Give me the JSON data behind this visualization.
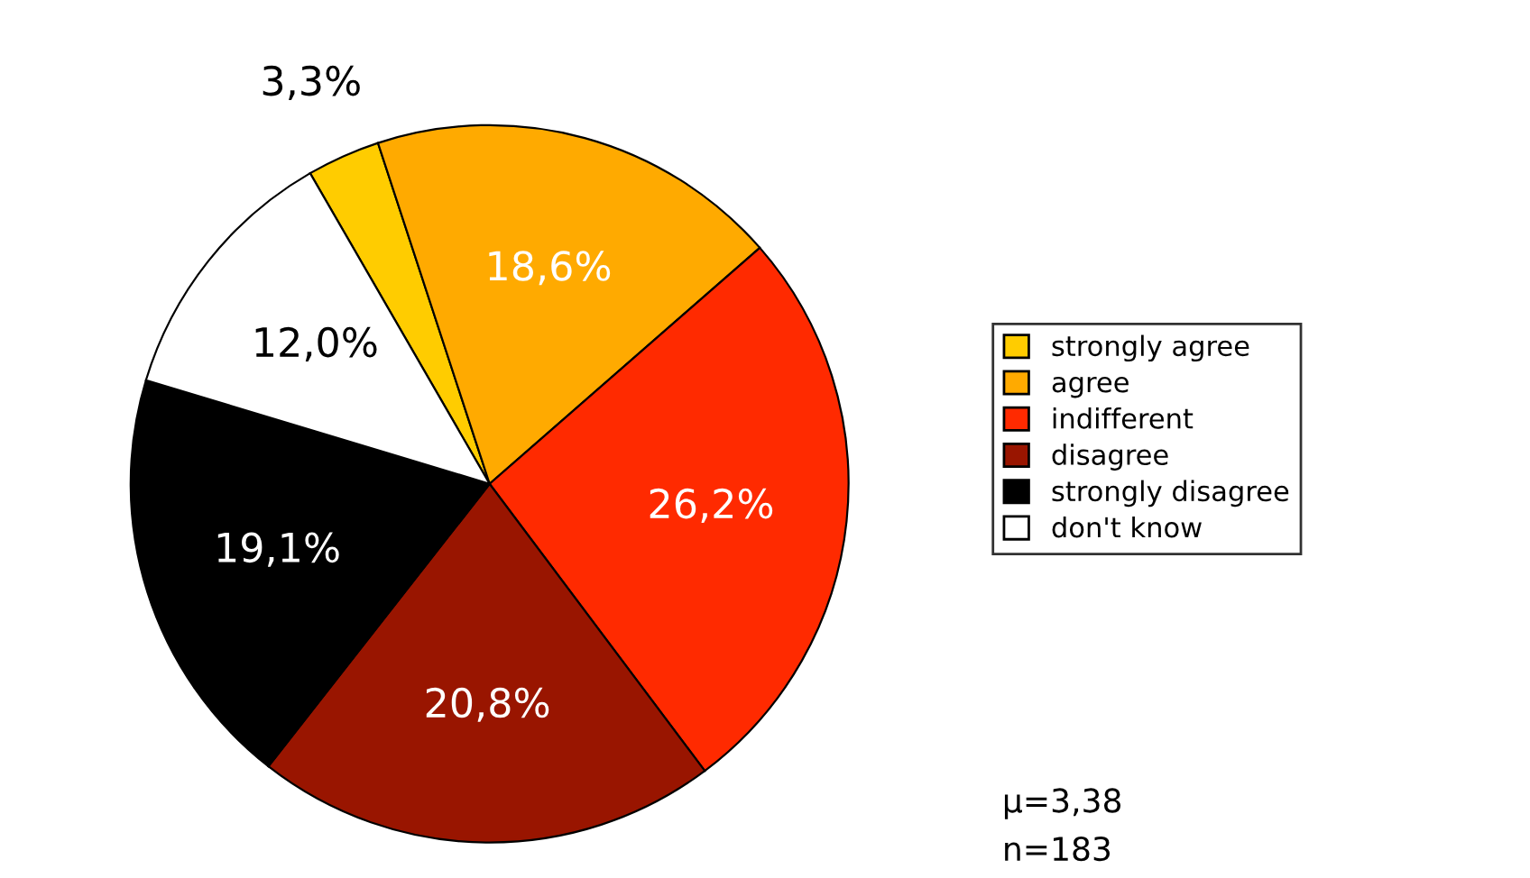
{
  "chart_data": {
    "type": "pie",
    "categories": [
      "strongly agree",
      "agree",
      "indifferent",
      "disagree",
      "strongly disagree",
      "don't know"
    ],
    "values": [
      3.3,
      18.6,
      26.2,
      20.8,
      19.1,
      12.0
    ],
    "colors": [
      "#ffcc00",
      "#ffaa00",
      "#ff2a00",
      "#991500",
      "#000000",
      "#ffffff"
    ],
    "value_labels": [
      "3,3%",
      "18,6%",
      "26,2%",
      "20,8%",
      "19,1%",
      "12,0%"
    ],
    "annotations": [
      "μ=3,38",
      "n=183"
    ],
    "legend": "right"
  }
}
